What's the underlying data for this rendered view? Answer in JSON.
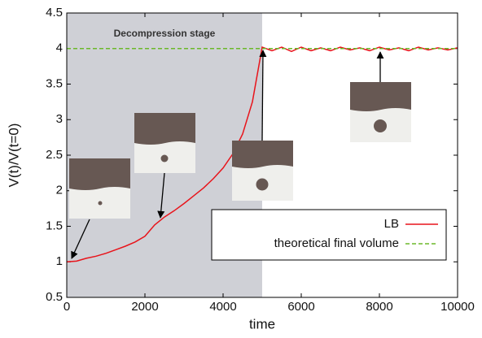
{
  "chart_data": {
    "type": "line",
    "xlabel": "time",
    "ylabel": "V(t)/V(t=0)",
    "xlim": [
      0,
      10000
    ],
    "xticks": [
      0,
      2000,
      4000,
      6000,
      8000,
      10000
    ],
    "ylim": [
      0.5,
      4.5
    ],
    "yticks": [
      0.5,
      1,
      1.5,
      2,
      2.5,
      3,
      3.5,
      4,
      4.5
    ],
    "shaded_region": {
      "x": [
        0,
        5000
      ],
      "label": "Decompression stage",
      "color": "#cfd0d6"
    },
    "legend": "lower right",
    "series": [
      {
        "name": "LB",
        "color": "#e8141b",
        "dash": false,
        "x": [
          0,
          250,
          500,
          750,
          1000,
          1250,
          1500,
          1750,
          2000,
          2250,
          2500,
          2750,
          3000,
          3250,
          3500,
          3750,
          4000,
          4250,
          4500,
          4750,
          5000,
          5250,
          5500,
          5750,
          6000,
          6250,
          6500,
          6750,
          7000,
          7250,
          7500,
          7750,
          8000,
          8250,
          8500,
          8750,
          9000,
          9250,
          9500,
          9750,
          10000
        ],
        "values": [
          1.0,
          1.01,
          1.05,
          1.08,
          1.12,
          1.17,
          1.22,
          1.28,
          1.36,
          1.52,
          1.63,
          1.72,
          1.82,
          1.93,
          2.04,
          2.17,
          2.32,
          2.52,
          2.8,
          3.25,
          4.02,
          3.97,
          4.02,
          3.96,
          4.02,
          3.97,
          4.01,
          3.97,
          4.02,
          3.98,
          4.01,
          3.97,
          4.02,
          3.98,
          4.01,
          3.97,
          4.02,
          3.98,
          4.01,
          3.98,
          4.01
        ]
      },
      {
        "name": "theoretical final volume",
        "color": "#6bb82a",
        "dash": true,
        "x": [
          0,
          10000
        ],
        "values": [
          4,
          4
        ]
      }
    ]
  }
}
